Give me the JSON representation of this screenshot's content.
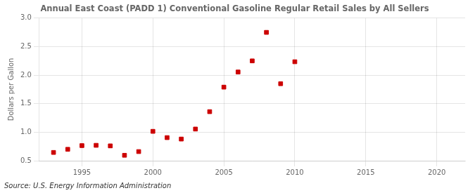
{
  "chart_data": {
    "type": "scatter",
    "title": "Annual East Coast (PADD 1) Conventional Gasoline Regular Retail Sales by All Sellers",
    "ylabel": "Dollars per Gallon",
    "annotations": [
      "Source: U.S. Energy Information Administration"
    ],
    "x": [
      1993,
      1994,
      1995,
      1996,
      1997,
      1998,
      1999,
      2000,
      2001,
      2002,
      2003,
      2004,
      2005,
      2006,
      2007,
      2008,
      2009,
      2010
    ],
    "values": [
      0.645,
      0.7,
      0.765,
      0.77,
      0.76,
      0.595,
      0.66,
      1.015,
      0.905,
      0.88,
      1.055,
      1.36,
      1.79,
      2.055,
      2.25,
      2.75,
      1.85,
      2.235
    ],
    "color": "#cc0000",
    "marker": "square",
    "xlim": [
      1992,
      2022
    ],
    "xticks": [
      1995,
      2000,
      2005,
      2010,
      2015,
      2020
    ],
    "ylim": [
      0.5,
      3.0
    ],
    "yticks": [
      0.5,
      {
        "value": 1.0,
        "label": "1.0"
      },
      1.5,
      {
        "value": 2.0,
        "label": "2.0"
      },
      2.5,
      {
        "value": 3.0,
        "label": "3.0"
      }
    ],
    "grid": true
  }
}
